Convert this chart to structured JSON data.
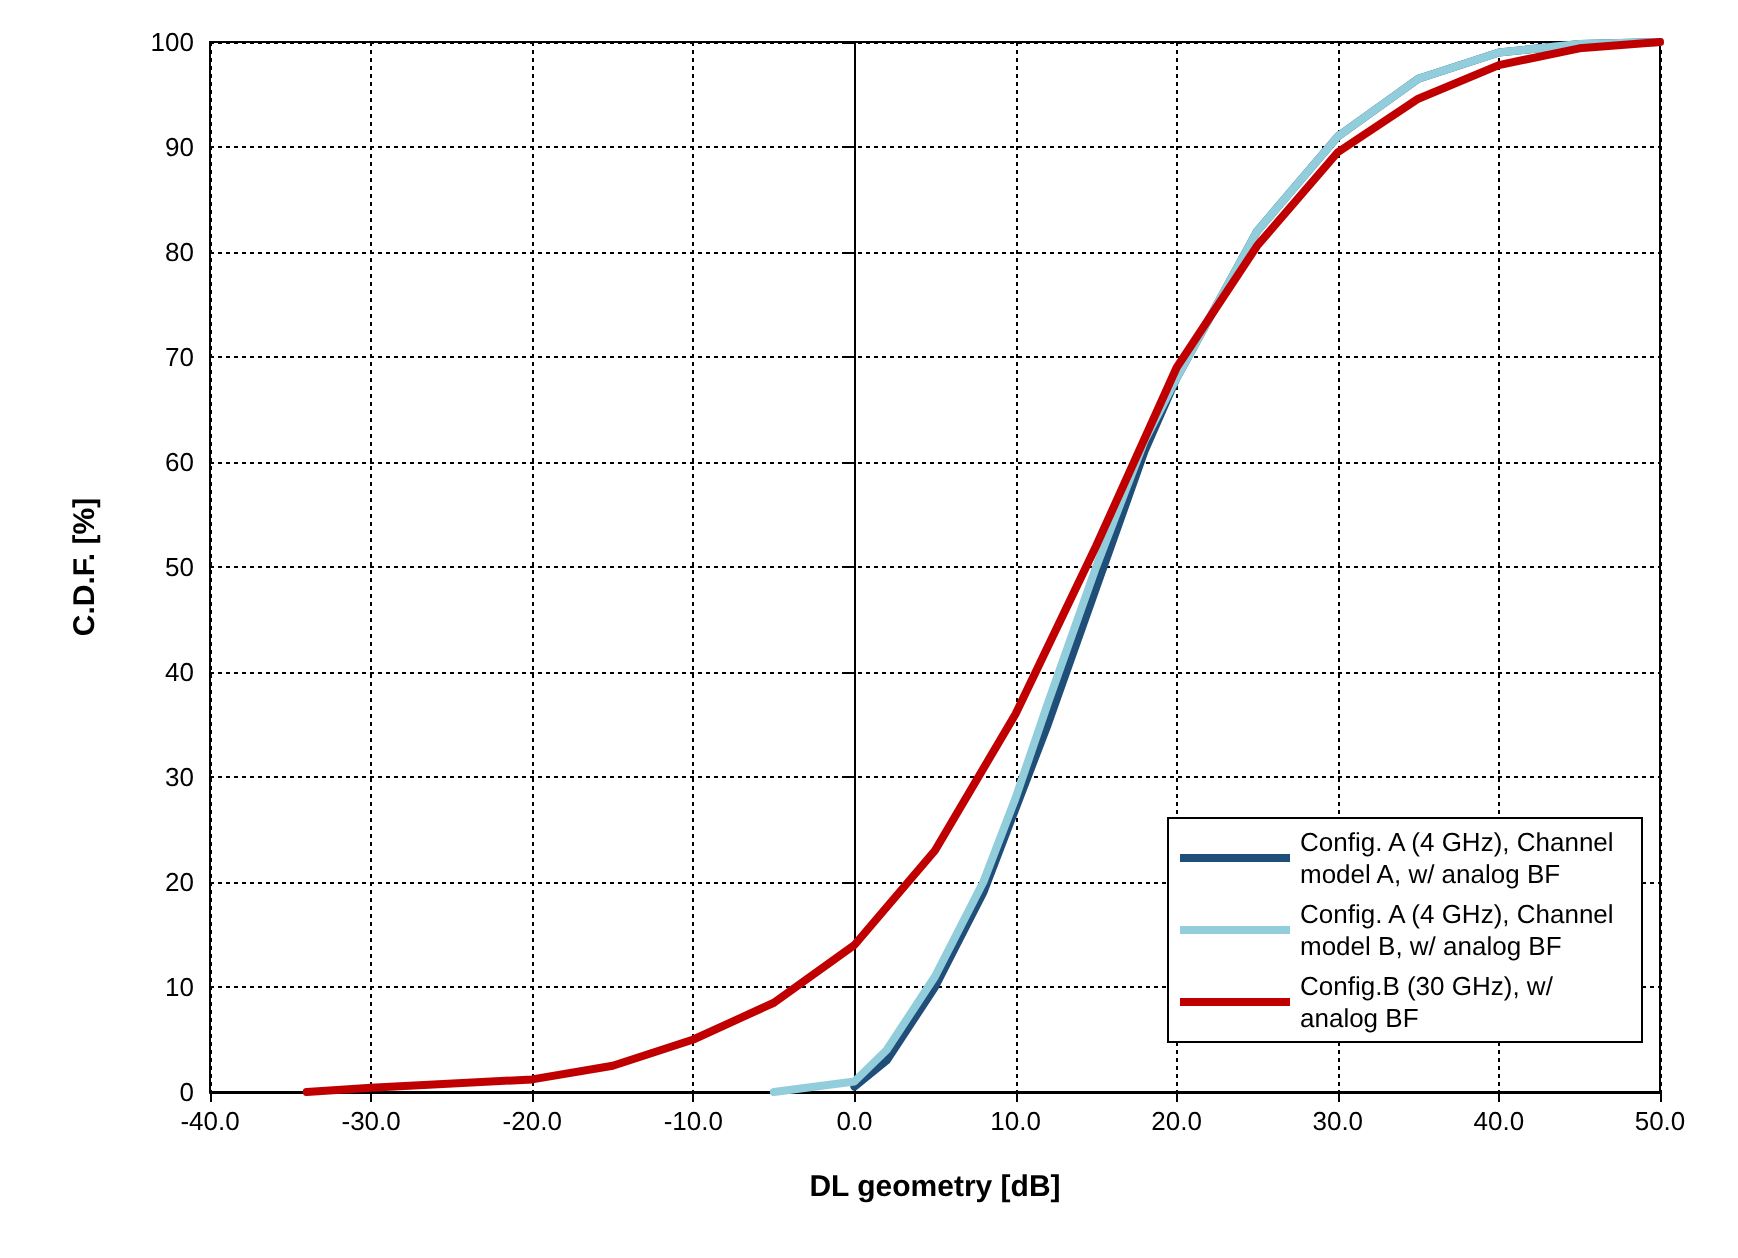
{
  "chart_data": {
    "type": "line",
    "xlabel": "DL geometry [dB]",
    "ylabel": "C.D.F. [%]",
    "xlim": [
      -40,
      50
    ],
    "xticks": [
      {
        "value": -40,
        "label": "-40.0"
      },
      {
        "value": -30,
        "label": "-30.0"
      },
      {
        "value": -20,
        "label": "-20.0"
      },
      {
        "value": -10,
        "label": "-10.0"
      },
      {
        "value": 0,
        "label": "0.0"
      },
      {
        "value": 10,
        "label": "10.0"
      },
      {
        "value": 20,
        "label": "20.0"
      },
      {
        "value": 30,
        "label": "30.0"
      },
      {
        "value": 40,
        "label": "40.0"
      },
      {
        "value": 50,
        "label": "50.0"
      }
    ],
    "ylim": [
      0,
      100
    ],
    "yticks": [
      0,
      10,
      20,
      30,
      40,
      50,
      60,
      70,
      80,
      90,
      100
    ],
    "grid": true,
    "legend": "bottom right",
    "marker": "none",
    "line_style": "solid",
    "series": [
      {
        "name": "Config. A (4 GHz), Channel model A, w/ analog BF",
        "color": "#1f4e79",
        "x": [
          0,
          2,
          5,
          8,
          10,
          12,
          15,
          18,
          20,
          25,
          30,
          35,
          40,
          45,
          50
        ],
        "values": [
          0.5,
          3,
          10,
          19,
          27,
          35,
          48,
          61,
          68,
          82,
          91,
          96.5,
          99,
          99.8,
          100
        ]
      },
      {
        "name": "Config. A (4 GHz), Channel model B, w/ analog BF",
        "color": "#92cddc",
        "x": [
          -5,
          0,
          2,
          5,
          8,
          10,
          12,
          15,
          18,
          20,
          25,
          30,
          35,
          40,
          45,
          50
        ],
        "values": [
          0,
          1,
          4,
          11,
          20,
          28,
          37,
          50,
          62,
          68,
          82,
          91,
          96.5,
          99,
          99.8,
          100
        ]
      },
      {
        "name": "Config.B (30 GHz), w/ analog BF",
        "color": "#c00000",
        "x": [
          -34,
          -30,
          -20,
          -15,
          -10,
          -5,
          0,
          5,
          10,
          15,
          20,
          25,
          30,
          35,
          40,
          45,
          50
        ],
        "values": [
          0,
          0.4,
          1.2,
          2.5,
          5,
          8.5,
          14,
          23,
          36,
          52,
          69,
          80.6,
          89.5,
          94.6,
          97.8,
          99.4,
          100
        ]
      }
    ]
  }
}
